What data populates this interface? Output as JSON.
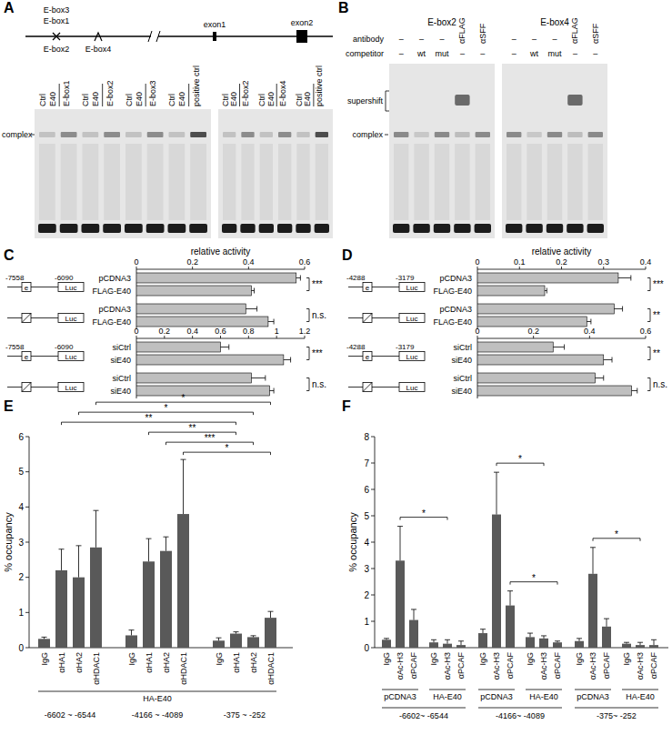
{
  "figure": {
    "panel_labels": [
      "A",
      "B",
      "C",
      "D",
      "E",
      "F"
    ],
    "gene_map": {
      "ebox_labels": [
        "E-box3",
        "E-box1",
        "E-box2",
        "E-box4"
      ],
      "exon_labels": [
        "exon1",
        "exon2"
      ]
    },
    "gel_a": {
      "complex_label": "complex",
      "gels": [
        {
          "groups": [
            {
              "label": "E-box1",
              "lanes": [
                "Ctrl",
                "E40"
              ]
            },
            {
              "label": "E-box2",
              "lanes": [
                "Ctrl",
                "E40"
              ]
            },
            {
              "label": "E-box3",
              "lanes": [
                "Ctrl",
                "E40"
              ]
            },
            {
              "label": "positive ctrl",
              "lanes": [
                "Ctrl",
                "E40"
              ]
            }
          ]
        },
        {
          "groups": [
            {
              "label": "E-box2",
              "lanes": [
                "Ctrl",
                "E40"
              ]
            },
            {
              "label": "E-box4",
              "lanes": [
                "Ctrl",
                "E40"
              ]
            },
            {
              "label": "positive ctrl",
              "lanes": [
                "Ctrl",
                "E40"
              ]
            }
          ]
        }
      ]
    },
    "gel_b": {
      "row_labels": [
        "antibody",
        "competitor"
      ],
      "supershift_label": "supershift",
      "complex_label": "complex",
      "gels": [
        {
          "title": "E-box2",
          "antibody": [
            "–",
            "–",
            "–",
            "αFLAG",
            "αSFF"
          ],
          "competitor": [
            "–",
            "wt",
            "mut",
            "–",
            "–"
          ]
        },
        {
          "title": "E-box4",
          "antibody": [
            "–",
            "–",
            "–",
            "αFLAG",
            "αSFF"
          ],
          "competitor": [
            "–",
            "wt",
            "mut",
            "–",
            "–"
          ]
        }
      ]
    }
  },
  "chart_data": [
    {
      "type": "bar",
      "orientation": "horizontal",
      "x_label": "relative activity",
      "categories": [
        "pCDNA3",
        "FLAG-E40",
        "pCDNA3",
        "FLAG-E40"
      ],
      "values": [
        0.57,
        0.41,
        0.39,
        0.47
      ],
      "errors": [
        0.015,
        0.01,
        0.04,
        0.02
      ],
      "color": "#bfbfbf",
      "xlim": [
        0,
        0.6
      ],
      "xticks": [
        0,
        0.2,
        0.4,
        0.6
      ],
      "constructs": [
        {
          "start": "-7558",
          "end": "-6090",
          "element": "e",
          "reporter": "Luc"
        },
        {
          "reporter": "Luc"
        }
      ],
      "significance": [
        "***",
        "n.s."
      ]
    },
    {
      "type": "bar",
      "orientation": "horizontal",
      "categories": [
        "siCtrl",
        "siE40",
        "siCtrl",
        "siE40"
      ],
      "values": [
        0.6,
        1.05,
        0.82,
        0.95
      ],
      "errors": [
        0.06,
        0.05,
        0.1,
        0.03
      ],
      "color": "#bfbfbf",
      "xlim": [
        0,
        1.2
      ],
      "xticks": [
        0,
        0.2,
        0.4,
        0.6,
        0.8,
        1,
        1.2
      ],
      "constructs": [
        {
          "start": "-7558",
          "end": "-6090",
          "element": "e",
          "reporter": "Luc"
        },
        {
          "reporter": "Luc"
        }
      ],
      "significance": [
        "***",
        "n.s."
      ]
    },
    {
      "type": "bar",
      "orientation": "horizontal",
      "x_label": "relative activity",
      "categories": [
        "pCDNA3",
        "FLAG-E40",
        "pCDNA3",
        "FLAG-E40"
      ],
      "values": [
        0.335,
        0.16,
        0.325,
        0.26
      ],
      "errors": [
        0.03,
        0.005,
        0.02,
        0.01
      ],
      "color": "#bfbfbf",
      "xlim": [
        0,
        0.4
      ],
      "xticks": [
        0,
        0.1,
        0.2,
        0.3,
        0.4
      ],
      "constructs": [
        {
          "start": "-4288",
          "end": "-3179",
          "element": "e",
          "reporter": "Luc"
        },
        {
          "reporter": "Luc"
        }
      ],
      "significance": [
        "***",
        "**"
      ]
    },
    {
      "type": "bar",
      "orientation": "horizontal",
      "categories": [
        "siCtrl",
        "siE40",
        "siCtrl",
        "siE40"
      ],
      "values": [
        0.27,
        0.45,
        0.42,
        0.55
      ],
      "errors": [
        0.04,
        0.03,
        0.03,
        0.02
      ],
      "color": "#bfbfbf",
      "xlim": [
        0,
        0.6
      ],
      "xticks": [
        0,
        0.2,
        0.4,
        0.6
      ],
      "constructs": [
        {
          "start": "-4288",
          "end": "-3179",
          "element": "e",
          "reporter": "Luc"
        },
        {
          "reporter": "Luc"
        }
      ],
      "significance": [
        "**",
        "n.s."
      ]
    },
    {
      "type": "bar",
      "y_label": "% occupancy",
      "categories": [
        "IgG",
        "αHA1",
        "αHA2",
        "αHDAC1",
        "IgG",
        "αHA1",
        "αHA2",
        "αHDAC1",
        "IgG",
        "αHA1",
        "αHA2",
        "αHDAC1"
      ],
      "values": [
        0.25,
        2.2,
        2.0,
        2.85,
        0.35,
        2.45,
        2.75,
        3.8,
        0.2,
        0.4,
        0.3,
        0.85
      ],
      "errors": [
        0.05,
        0.6,
        0.9,
        1.05,
        0.15,
        0.65,
        0.4,
        1.55,
        0.08,
        0.05,
        0.04,
        0.18
      ],
      "color": "#595959",
      "ylim": [
        0,
        6
      ],
      "yticks": [
        0,
        1,
        2,
        3,
        4,
        5,
        6
      ],
      "group_labels": [
        {
          "text": "HA-E40",
          "from": 0,
          "to": 11
        }
      ],
      "region_labels": [
        {
          "text": "-6602 ~ -6544",
          "from": 0,
          "to": 3
        },
        {
          "text": "-4166 ~ -4089",
          "from": 4,
          "to": 7
        },
        {
          "text": "-375 ~ -252",
          "from": 8,
          "to": 11
        }
      ],
      "brackets": [
        {
          "from": 7,
          "to": 11,
          "text": "*"
        },
        {
          "from": 6,
          "to": 10,
          "text": "***"
        },
        {
          "from": 5,
          "to": 9,
          "text": "**"
        },
        {
          "from": 1,
          "to": 9,
          "text": "**"
        },
        {
          "from": 2,
          "to": 10,
          "text": "*"
        },
        {
          "from": 3,
          "to": 11,
          "text": "*"
        }
      ]
    },
    {
      "type": "bar",
      "y_label": "% occupancy",
      "categories": [
        "IgG",
        "αAc-H3",
        "αPCAF",
        "IgG",
        "αAc-H3",
        "αPCAF",
        "IgG",
        "αAc-H3",
        "αPCAF",
        "IgG",
        "αAc-H3",
        "αPCAF",
        "IgG",
        "αAc-H3",
        "αPCAF",
        "IgG",
        "αAc-H3",
        "αPCAF"
      ],
      "values": [
        0.3,
        3.3,
        1.05,
        0.2,
        0.15,
        0.1,
        0.55,
        5.05,
        1.6,
        0.4,
        0.35,
        0.2,
        0.25,
        2.8,
        0.8,
        0.15,
        0.1,
        0.1
      ],
      "errors": [
        0.05,
        1.3,
        0.4,
        0.1,
        0.15,
        0.15,
        0.15,
        1.6,
        0.55,
        0.15,
        0.1,
        0.05,
        0.1,
        1.0,
        0.3,
        0.05,
        0.1,
        0.2
      ],
      "color": "#595959",
      "ylim": [
        0,
        8
      ],
      "yticks": [
        0,
        1,
        2,
        3,
        4,
        5,
        6,
        7,
        8
      ],
      "group_labels": [
        {
          "text": "pCDNA3",
          "from": 0,
          "to": 2
        },
        {
          "text": "HA-E40",
          "from": 3,
          "to": 5
        },
        {
          "text": "pCDNA3",
          "from": 6,
          "to": 8
        },
        {
          "text": "HA-E40",
          "from": 9,
          "to": 11
        },
        {
          "text": "pCDNA3",
          "from": 12,
          "to": 14
        },
        {
          "text": "HA-E40",
          "from": 15,
          "to": 17
        }
      ],
      "region_labels": [
        {
          "text": "-6602~ -6544",
          "from": 0,
          "to": 5
        },
        {
          "text": "-4166~ -4089",
          "from": 6,
          "to": 11
        },
        {
          "text": "-375~ -252",
          "from": 12,
          "to": 17
        }
      ],
      "brackets": [
        {
          "from": 1,
          "to": 4,
          "text": "*"
        },
        {
          "from": 7,
          "to": 10,
          "text": "*"
        },
        {
          "from": 8,
          "to": 11,
          "text": "*"
        },
        {
          "from": 13,
          "to": 16,
          "text": "*"
        }
      ]
    }
  ]
}
